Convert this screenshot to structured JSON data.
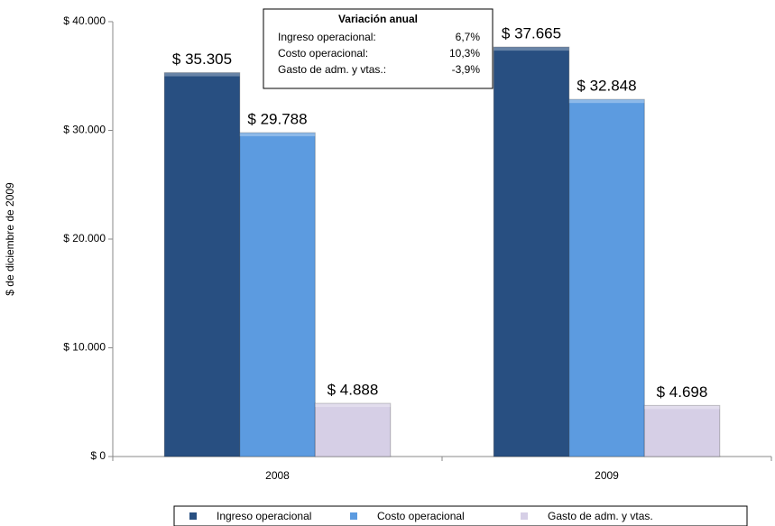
{
  "chart_data": {
    "type": "bar",
    "categories": [
      "2008",
      "2009"
    ],
    "series": [
      {
        "name": "Ingreso operacional",
        "color": "#284f81",
        "values": [
          35305,
          37665
        ],
        "value_labels": [
          "$ 35.305",
          "$ 37.665"
        ]
      },
      {
        "name": "Costo operacional",
        "color": "#5c9be0",
        "values": [
          29788,
          32848
        ],
        "value_labels": [
          "$ 29.788",
          "$ 32.848"
        ]
      },
      {
        "name": "Gasto de adm. y vtas.",
        "color": "#d6cfe6",
        "values": [
          4888,
          4698
        ],
        "value_labels": [
          "$ 4.888",
          "$ 4.698"
        ]
      }
    ],
    "ylabel": "$ de diciembre de 2009",
    "ylim": [
      0,
      40000
    ],
    "yticks": [
      {
        "value": 0,
        "label": "$ 0"
      },
      {
        "value": 10000,
        "label": "$ 10.000"
      },
      {
        "value": 20000,
        "label": "$ 20.000"
      },
      {
        "value": 30000,
        "label": "$ 30.000"
      },
      {
        "value": 40000,
        "label": "$ 40.000"
      }
    ],
    "annotation": {
      "title": "Variación anual",
      "rows": [
        [
          "Ingreso operacional:",
          "6,7%"
        ],
        [
          "Costo operacional:",
          "10,3%"
        ],
        [
          "Gasto de adm. y vtas.:",
          "-3,9%"
        ]
      ]
    },
    "legend": "bottom"
  }
}
